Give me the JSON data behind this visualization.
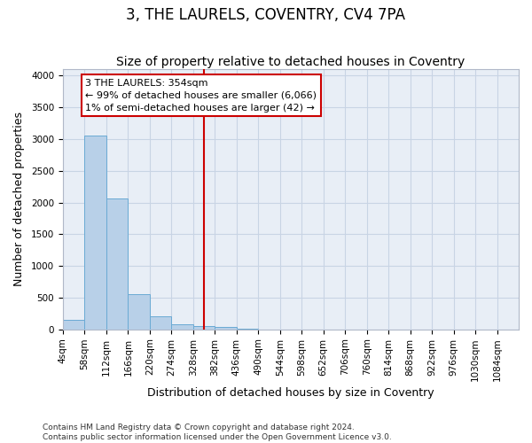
{
  "title": "3, THE LAURELS, COVENTRY, CV4 7PA",
  "subtitle": "Size of property relative to detached houses in Coventry",
  "xlabel": "Distribution of detached houses by size in Coventry",
  "ylabel": "Number of detached properties",
  "bin_edges": [
    4,
    58,
    112,
    166,
    220,
    274,
    328,
    382,
    436,
    490,
    544,
    598,
    652,
    706,
    760,
    814,
    868,
    922,
    976,
    1030,
    1084
  ],
  "bar_heights": [
    150,
    3060,
    2060,
    560,
    205,
    80,
    52,
    40,
    10,
    0,
    0,
    0,
    0,
    0,
    0,
    0,
    0,
    0,
    0,
    0
  ],
  "bar_color": "#b8d0e8",
  "bar_edge_color": "#6aaad4",
  "grid_color": "#c8d4e4",
  "background_color": "#e8eef6",
  "vline_x": 354,
  "vline_color": "#cc0000",
  "annotation_text": "3 THE LAURELS: 354sqm\n← 99% of detached houses are smaller (6,066)\n1% of semi-detached houses are larger (42) →",
  "annotation_box_color": "#cc0000",
  "ylim": [
    0,
    4100
  ],
  "yticks": [
    0,
    500,
    1000,
    1500,
    2000,
    2500,
    3000,
    3500,
    4000
  ],
  "footer_line1": "Contains HM Land Registry data © Crown copyright and database right 2024.",
  "footer_line2": "Contains public sector information licensed under the Open Government Licence v3.0.",
  "title_fontsize": 12,
  "subtitle_fontsize": 10,
  "tick_fontsize": 7.5,
  "label_fontsize": 9,
  "annotation_fontsize": 8,
  "footer_fontsize": 6.5
}
